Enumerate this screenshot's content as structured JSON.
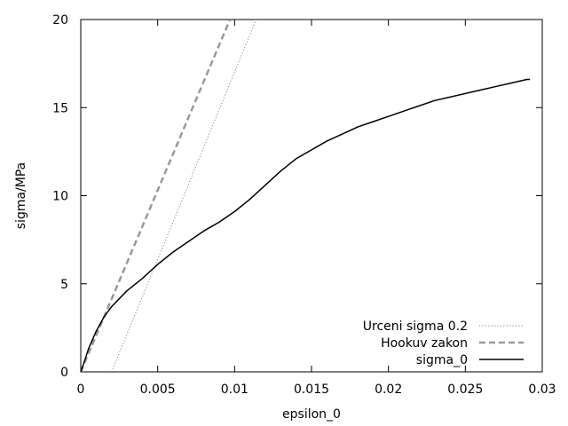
{
  "chart_data": {
    "type": "line",
    "title": "",
    "xlabel": "epsilon_0",
    "ylabel": "sigma/MPa",
    "xlim": [
      0,
      0.03
    ],
    "ylim": [
      0,
      20
    ],
    "x_ticks": [
      0,
      0.005,
      0.01,
      0.015,
      0.02,
      0.025,
      0.03
    ],
    "x_tick_labels": [
      "0",
      "0.005",
      "0.01",
      "0.015",
      "0.02",
      "0.025",
      "0.03"
    ],
    "y_ticks": [
      0,
      5,
      10,
      15,
      20
    ],
    "y_tick_labels": [
      "0",
      "5",
      "10",
      "15",
      "20"
    ],
    "grid": false,
    "legend_position": "bottom-right",
    "series": [
      {
        "name": "Urceni sigma 0.2",
        "style": "dotted",
        "color": "#888888",
        "x": [
          0.002,
          0.0114
        ],
        "y": [
          0,
          20
        ]
      },
      {
        "name": "Hookuv zakon",
        "style": "dashed",
        "color": "#999999",
        "x": [
          0,
          0.0097
        ],
        "y": [
          0,
          20
        ]
      },
      {
        "name": "sigma_0",
        "style": "solid",
        "color": "#000000",
        "x": [
          0,
          0.0002,
          0.0005,
          0.001,
          0.0015,
          0.002,
          0.003,
          0.004,
          0.005,
          0.006,
          0.007,
          0.008,
          0.009,
          0.01,
          0.011,
          0.012,
          0.013,
          0.014,
          0.015,
          0.016,
          0.017,
          0.018,
          0.019,
          0.02,
          0.021,
          0.022,
          0.023,
          0.024,
          0.025,
          0.026,
          0.027,
          0.028,
          0.029,
          0.0292
        ],
        "y": [
          0,
          0.5,
          1.3,
          2.3,
          3.1,
          3.7,
          4.6,
          5.3,
          6.1,
          6.8,
          7.4,
          8.0,
          8.5,
          9.1,
          9.8,
          10.6,
          11.4,
          12.1,
          12.6,
          13.1,
          13.5,
          13.9,
          14.2,
          14.5,
          14.8,
          15.1,
          15.4,
          15.6,
          15.8,
          16.0,
          16.2,
          16.4,
          16.6,
          16.6
        ]
      }
    ]
  }
}
